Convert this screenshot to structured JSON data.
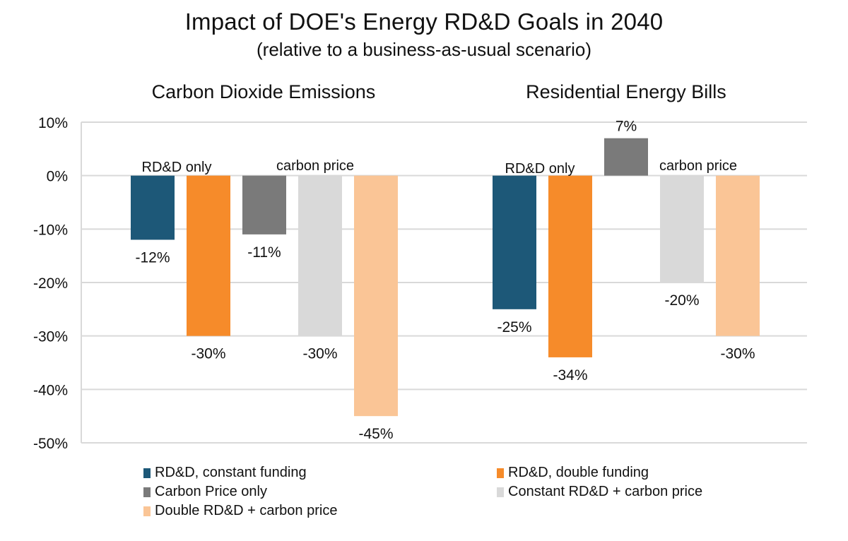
{
  "chart_data": {
    "type": "bar",
    "title": "Impact of DOE's Energy RD&D Goals in 2040",
    "subtitle": "(relative to a business-as-usual scenario)",
    "ylim": [
      -50,
      10
    ],
    "yticks": [
      10,
      0,
      -10,
      -20,
      -30,
      -40,
      -50
    ],
    "ytick_labels": [
      "10%",
      "0%",
      "-10%",
      "-20%",
      "-30%",
      "-40%",
      "-50%"
    ],
    "grid": true,
    "legend_position": "bottom",
    "categories": [
      "Carbon Dioxide Emissions",
      "Residential Energy Bills"
    ],
    "series": [
      {
        "name": "RD&D, constant funding",
        "color": "#1d5878",
        "values": [
          -12,
          -25
        ],
        "labels": [
          "-12%",
          "-25%"
        ]
      },
      {
        "name": "RD&D, double funding",
        "color": "#f68b2a",
        "values": [
          -30,
          -34
        ],
        "labels": [
          "-30%",
          "-34%"
        ]
      },
      {
        "name": "Carbon Price only",
        "color": "#7a7a7a",
        "values": [
          -11,
          7
        ],
        "labels": [
          "-11%",
          "7%"
        ]
      },
      {
        "name": "Constant RD&D + carbon price",
        "color": "#d9d9d9",
        "values": [
          -30,
          -20
        ],
        "labels": [
          "-30%",
          "-20%"
        ]
      },
      {
        "name": "Double RD&D + carbon price",
        "color": "#fac596",
        "values": [
          -45,
          -30
        ],
        "labels": [
          "-45%",
          "-30%"
        ]
      }
    ],
    "annotations": [
      {
        "group": 0,
        "text": "RD&D only"
      },
      {
        "group": 0,
        "text": "carbon price"
      },
      {
        "group": 1,
        "text": "RD&D only"
      },
      {
        "group": 1,
        "text": "carbon price"
      }
    ]
  }
}
